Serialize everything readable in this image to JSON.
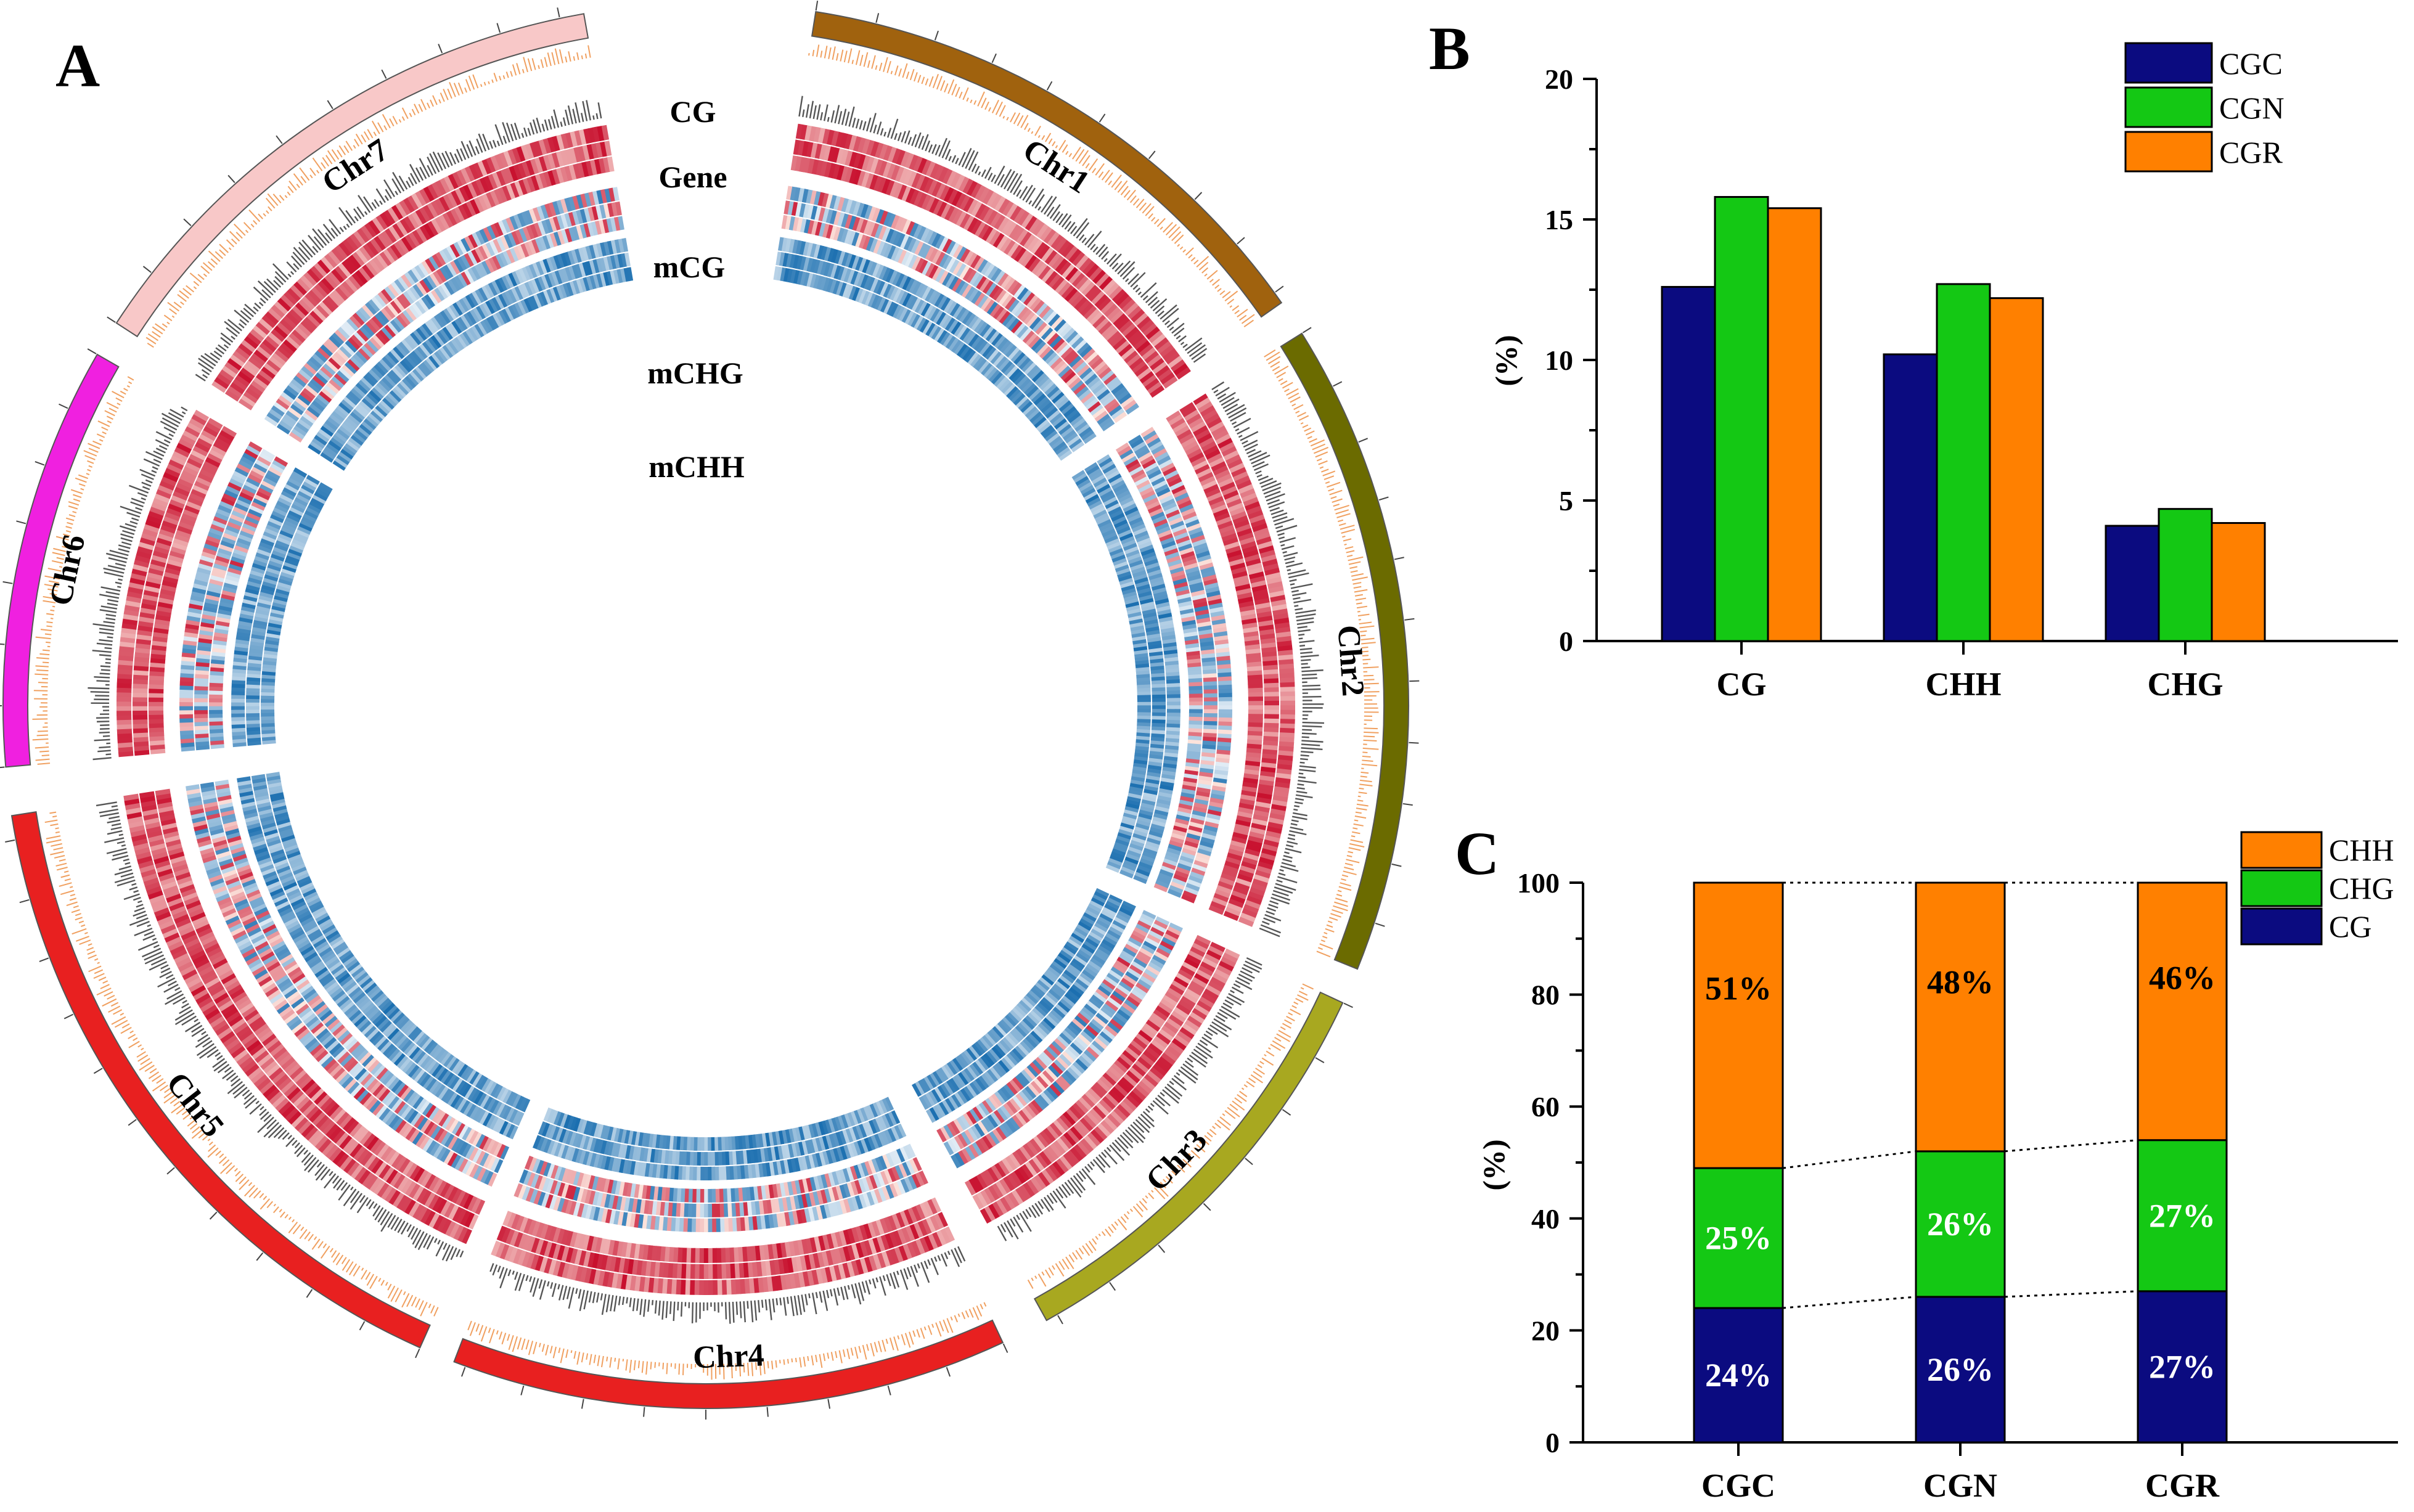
{
  "colors": {
    "navy": "#0b0b80",
    "green": "#14c814",
    "orange": "#ff8000",
    "pct_dark": "#000000",
    "pct_light": "#ffffff",
    "heat_red": "#c8102e",
    "heat_blue": "#1b6fb0",
    "density_dark": "#555555",
    "density_orange": "#f0a060"
  },
  "circos": {
    "panel_label": "A",
    "ring_labels": [
      "CG",
      "Gene",
      "mCG",
      "mCHG",
      "mCHH"
    ],
    "chromosomes": [
      {
        "name": "Chr1",
        "color": "#a0620e"
      },
      {
        "name": "Chr2",
        "color": "#6b6b00"
      },
      {
        "name": "Chr3",
        "color": "#a8a820"
      },
      {
        "name": "Chr4",
        "color": "#e82020"
      },
      {
        "name": "Chr5",
        "color": "#e82020"
      },
      {
        "name": "Chr6",
        "color": "#f020e0"
      },
      {
        "name": "Chr7",
        "color": "#f8c8c8"
      }
    ]
  },
  "chart_data": [
    {
      "type": "bar",
      "panel_label": "B",
      "title": "",
      "xlabel": "",
      "ylabel": "(%)",
      "categories": [
        "CG",
        "CHH",
        "CHG"
      ],
      "series": [
        {
          "name": "CGC",
          "values": [
            12.6,
            10.2,
            4.1
          ]
        },
        {
          "name": "CGN",
          "values": [
            15.8,
            12.7,
            4.7
          ]
        },
        {
          "name": "CGR",
          "values": [
            15.4,
            12.2,
            4.2
          ]
        }
      ],
      "ylim": [
        0,
        20
      ],
      "yticks": [
        "0",
        "5",
        "10",
        "15",
        "20"
      ],
      "legend": "top-right",
      "grid": false
    },
    {
      "type": "stacked-bar",
      "panel_label": "C",
      "title": "",
      "xlabel": "",
      "ylabel": "(%)",
      "categories": [
        "CGC",
        "CGN",
        "CGR"
      ],
      "series": [
        {
          "name": "CG",
          "values": [
            24,
            26,
            27
          ],
          "labels": [
            "24%",
            "26%",
            "27%"
          ]
        },
        {
          "name": "CHG",
          "values": [
            25,
            26,
            27
          ],
          "labels": [
            "25%",
            "26%",
            "27%"
          ]
        },
        {
          "name": "CHH",
          "values": [
            51,
            48,
            46
          ],
          "labels": [
            "51%",
            "48%",
            "46%"
          ]
        }
      ],
      "legend_order": [
        "CHH",
        "CHG",
        "CG"
      ],
      "ylim": [
        0,
        100
      ],
      "yticks": [
        "0",
        "20",
        "40",
        "60",
        "80",
        "100"
      ],
      "legend": "top-right",
      "grid": false
    }
  ]
}
